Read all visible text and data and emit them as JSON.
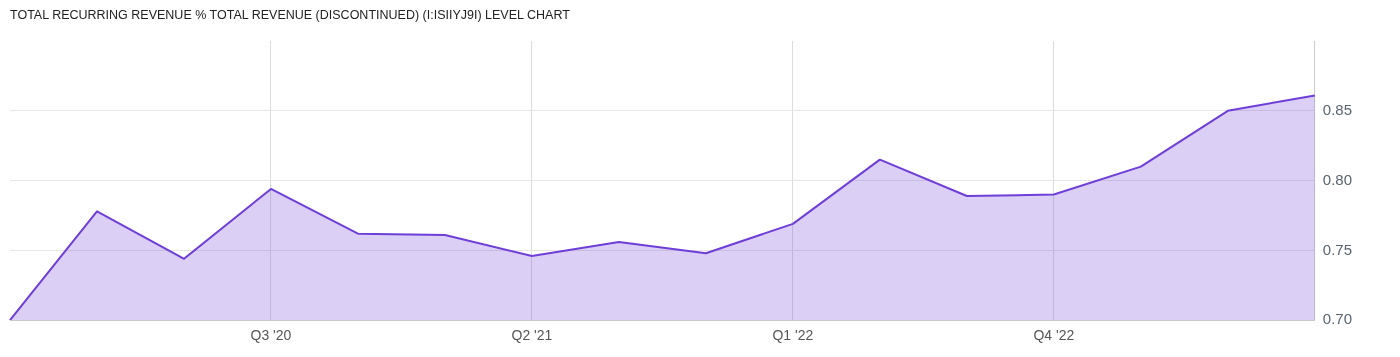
{
  "chart_data": {
    "type": "area",
    "title": "TOTAL RECURRING REVENUE % TOTAL REVENUE (DISCONTINUED) (I:ISIIYJ9I) LEVEL CHART",
    "categories": [
      null,
      null,
      null,
      "Q3 '20",
      null,
      null,
      "Q2 '21",
      null,
      null,
      "Q1 '22",
      null,
      null,
      "Q4 '22",
      null,
      null,
      null
    ],
    "series": [
      {
        "color": "#6e3fd8",
        "values": [
          0.7,
          0.778,
          0.744,
          0.794,
          0.762,
          0.761,
          0.746,
          0.756,
          0.748,
          0.769,
          0.815,
          0.789,
          0.79,
          0.81,
          0.85,
          0.861
        ]
      }
    ],
    "ylim": [
      0.7,
      0.9
    ],
    "yticks": [
      {
        "value": 0.7,
        "label": "0.70"
      },
      {
        "value": 0.75,
        "label": "0.75"
      },
      {
        "value": 0.8,
        "label": "0.80"
      },
      {
        "value": 0.85,
        "label": "0.85"
      }
    ],
    "grid": true,
    "legend": false
  }
}
